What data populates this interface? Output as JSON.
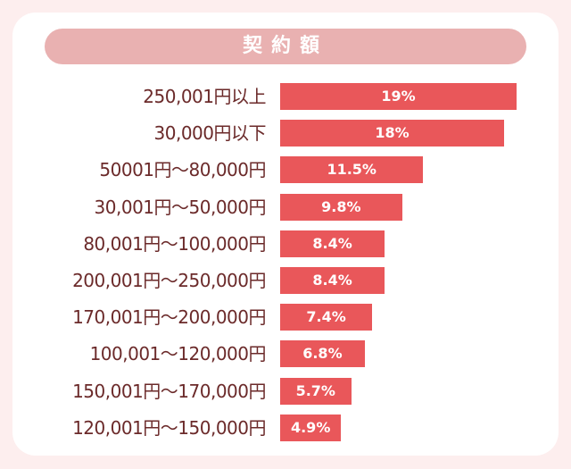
{
  "chart_data": {
    "type": "bar",
    "orientation": "horizontal",
    "title": "契約額",
    "categories": [
      "250,001円以上",
      "30,000円以下",
      "50001円〜80,000円",
      "30,001円〜50,000円",
      "80,001円〜100,000円",
      "200,001円〜250,000円",
      "170,001円〜200,000円",
      "100,001〜120,000円",
      "150,001円〜170,000円",
      "120,001円〜150,000円"
    ],
    "values": [
      19,
      18,
      11.5,
      9.8,
      8.4,
      8.4,
      7.4,
      6.8,
      5.7,
      4.9
    ],
    "value_labels": [
      "19%",
      "18%",
      "11.5%",
      "9.8%",
      "8.4%",
      "8.4%",
      "7.4%",
      "6.8%",
      "5.7%",
      "4.9%"
    ],
    "xlim": [
      0,
      19
    ],
    "unit": "%",
    "bar_color": "#e9575a",
    "label_color": "#6b2a2a"
  }
}
